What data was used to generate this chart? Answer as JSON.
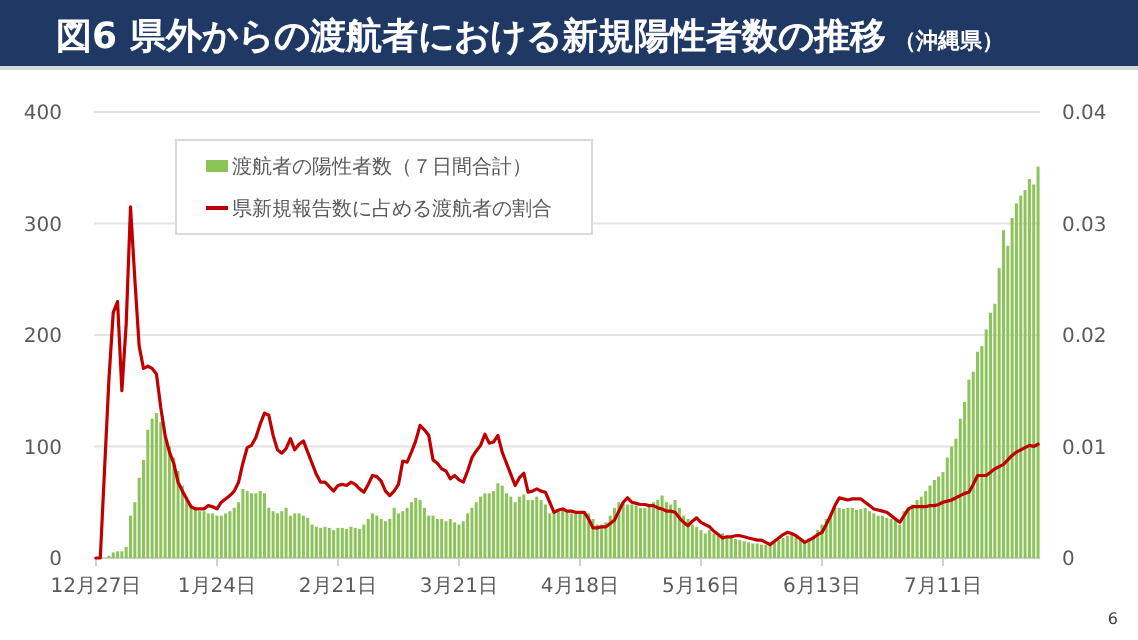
{
  "chart_data": {
    "type": "bar",
    "title": "図6 県外からの渡航者における新規陽性者数の推移",
    "subtitle": "（沖縄県）",
    "categories": [
      "12月27日",
      null,
      null,
      null,
      null,
      null,
      null,
      null,
      null,
      null,
      null,
      null,
      null,
      null,
      null,
      null,
      null,
      null,
      null,
      null,
      null,
      null,
      null,
      null,
      null,
      null,
      null,
      null,
      "1月24日",
      null,
      null,
      null,
      null,
      null,
      null,
      null,
      null,
      null,
      null,
      null,
      null,
      null,
      null,
      null,
      null,
      null,
      null,
      null,
      null,
      null,
      null,
      null,
      null,
      null,
      null,
      null,
      "2月21日",
      null,
      null,
      null,
      null,
      null,
      null,
      null,
      null,
      null,
      null,
      null,
      null,
      null,
      null,
      null,
      null,
      null,
      null,
      null,
      null,
      null,
      null,
      null,
      null,
      null,
      null,
      null,
      "3月21日",
      null,
      null,
      null,
      null,
      null,
      null,
      null,
      null,
      null,
      null,
      null,
      null,
      null,
      null,
      null,
      null,
      null,
      null,
      null,
      null,
      null,
      null,
      null,
      null,
      null,
      null,
      null,
      "4月18日",
      null,
      null,
      null,
      null,
      null,
      null,
      null,
      null,
      null,
      null,
      null,
      null,
      null,
      null,
      null,
      null,
      null,
      null,
      null,
      null,
      null,
      null,
      null,
      null,
      null,
      null,
      null,
      "5月16日",
      null,
      null,
      null,
      null,
      null,
      null,
      null,
      null,
      null,
      null,
      null,
      null,
      null,
      null,
      null,
      null,
      null,
      null,
      null,
      null,
      null,
      null,
      null,
      null,
      null,
      null,
      null,
      "6月13日",
      null,
      null,
      null,
      null,
      null,
      null,
      null,
      null,
      null,
      null,
      null,
      null,
      null,
      null,
      null,
      null,
      null,
      null,
      null,
      null,
      null,
      null,
      null,
      null,
      null,
      null,
      null,
      "7月11日",
      null,
      null,
      null,
      null,
      null,
      null,
      null,
      null,
      null,
      null,
      null,
      null,
      null,
      null,
      null,
      null,
      null,
      null,
      null,
      null,
      null,
      null
    ],
    "series": [
      {
        "name": "渡航者の陽性者数（７日間合計）",
        "color": "#8cc45a",
        "values": [
          0,
          0,
          0,
          2,
          5,
          6,
          6,
          10,
          38,
          50,
          72,
          88,
          115,
          125,
          130,
          122,
          110,
          100,
          90,
          78,
          65,
          55,
          48,
          45,
          42,
          42,
          40,
          40,
          38,
          38,
          40,
          42,
          45,
          50,
          62,
          60,
          58,
          58,
          60,
          58,
          45,
          42,
          40,
          42,
          45,
          38,
          40,
          40,
          38,
          36,
          30,
          28,
          27,
          28,
          27,
          25,
          27,
          27,
          26,
          28,
          27,
          26,
          30,
          35,
          40,
          38,
          35,
          33,
          35,
          45,
          40,
          42,
          45,
          50,
          54,
          52,
          45,
          38,
          38,
          35,
          35,
          33,
          35,
          32,
          30,
          33,
          40,
          45,
          50,
          55,
          58,
          58,
          60,
          67,
          65,
          58,
          55,
          50,
          55,
          57,
          52,
          52,
          55,
          52,
          48,
          40,
          42,
          42,
          45,
          42,
          40,
          40,
          40,
          42,
          40,
          35,
          30,
          30,
          32,
          38,
          45,
          50,
          50,
          48,
          48,
          47,
          45,
          45,
          48,
          50,
          52,
          56,
          50,
          48,
          52,
          45,
          38,
          35,
          30,
          28,
          25,
          22,
          25,
          22,
          20,
          22,
          20,
          18,
          17,
          16,
          15,
          14,
          13,
          13,
          12,
          12,
          12,
          14,
          16,
          18,
          20,
          22,
          20,
          18,
          15,
          18,
          20,
          25,
          30,
          35,
          40,
          45,
          45,
          44,
          45,
          45,
          43,
          44,
          45,
          42,
          40,
          38,
          38,
          36,
          35,
          35,
          30,
          42,
          45,
          48,
          52,
          55,
          60,
          65,
          70,
          73,
          77,
          90,
          100,
          107,
          125,
          140,
          160,
          167,
          185,
          190,
          205,
          220,
          228,
          260,
          294,
          280,
          305,
          318,
          325,
          330,
          340,
          335,
          351
        ]
      },
      {
        "name": "県新規報告数に占める渡航者の割合",
        "type": "line",
        "axis": "y2",
        "color": "#c00000",
        "values": [
          0,
          0,
          0.008,
          0.016,
          0.022,
          0.023,
          0.015,
          0.021,
          0.0315,
          0.025,
          0.019,
          0.017,
          0.0172,
          0.017,
          0.0165,
          0.0135,
          0.011,
          0.0095,
          0.0085,
          0.0068,
          0.006,
          0.0053,
          0.0046,
          0.0044,
          0.0044,
          0.0044,
          0.0047,
          0.0046,
          0.0044,
          0.005,
          0.0053,
          0.0056,
          0.006,
          0.0068,
          0.0085,
          0.0099,
          0.0101,
          0.0108,
          0.012,
          0.013,
          0.0128,
          0.011,
          0.0097,
          0.0094,
          0.0098,
          0.0107,
          0.0097,
          0.0102,
          0.0105,
          0.0095,
          0.0085,
          0.0075,
          0.0068,
          0.0068,
          0.0064,
          0.006,
          0.0065,
          0.0066,
          0.0065,
          0.0068,
          0.0066,
          0.0062,
          0.0059,
          0.0066,
          0.0074,
          0.0073,
          0.0069,
          0.006,
          0.0056,
          0.006,
          0.0066,
          0.0087,
          0.0086,
          0.0095,
          0.0105,
          0.0119,
          0.0115,
          0.011,
          0.0088,
          0.0085,
          0.008,
          0.0078,
          0.0071,
          0.0074,
          0.007,
          0.0068,
          0.0078,
          0.009,
          0.0096,
          0.0101,
          0.0111,
          0.0103,
          0.0104,
          0.011,
          0.0095,
          0.0085,
          0.0075,
          0.0065,
          0.0072,
          0.0076,
          0.0059,
          0.006,
          0.0062,
          0.006,
          0.0059,
          0.005,
          0.0041,
          0.0043,
          0.0044,
          0.0042,
          0.0042,
          0.0041,
          0.0041,
          0.0041,
          0.0035,
          0.0027,
          0.0027,
          0.0028,
          0.0028,
          0.0031,
          0.0034,
          0.0042,
          0.005,
          0.0054,
          0.005,
          0.0049,
          0.0048,
          0.0048,
          0.0047,
          0.0047,
          0.0045,
          0.0044,
          0.0042,
          0.0042,
          0.0041,
          0.0036,
          0.0032,
          0.0029,
          0.0033,
          0.0036,
          0.0032,
          0.003,
          0.0028,
          0.0024,
          0.0021,
          0.0018,
          0.0019,
          0.0019,
          0.002,
          0.002,
          0.0019,
          0.0018,
          0.0017,
          0.0016,
          0.0016,
          0.0014,
          0.0012,
          0.0015,
          0.0018,
          0.0021,
          0.0023,
          0.0022,
          0.002,
          0.0017,
          0.0014,
          0.0016,
          0.0018,
          0.0021,
          0.0023,
          0.003,
          0.0038,
          0.0047,
          0.0054,
          0.0053,
          0.0052,
          0.0053,
          0.0053,
          0.0053,
          0.005,
          0.0047,
          0.0044,
          0.0043,
          0.0042,
          0.0041,
          0.0038,
          0.0035,
          0.0032,
          0.0038,
          0.0044,
          0.0046,
          0.0046,
          0.0046,
          0.0046,
          0.0047,
          0.0047,
          0.0048,
          0.005,
          0.0051,
          0.0052,
          0.0054,
          0.0056,
          0.0058,
          0.0059,
          0.0066,
          0.0074,
          0.0074,
          0.0074,
          0.0077,
          0.008,
          0.0082,
          0.0084,
          0.0088,
          0.0092,
          0.0095,
          0.0097,
          0.0099,
          0.0101,
          0.01,
          0.0102
        ]
      }
    ],
    "ylim": [
      0,
      400
    ],
    "yticks": [
      0,
      100,
      200,
      300,
      400
    ],
    "y2lim": [
      0,
      0.04
    ],
    "y2ticks": [
      0,
      0.01,
      0.02,
      0.03,
      0.04
    ],
    "grid": "y",
    "legend": "top left",
    "annotations": [
      "6"
    ]
  }
}
